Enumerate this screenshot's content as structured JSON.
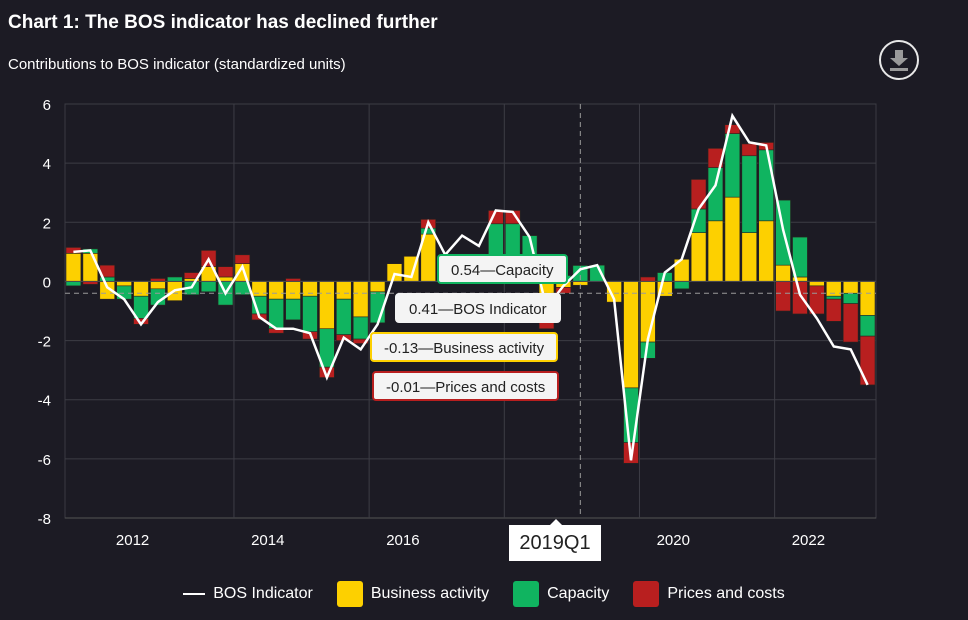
{
  "title": "Chart 1: The BOS indicator has declined further",
  "subtitle": "Contributions to BOS indicator (standardized units)",
  "download_icon": "download-icon",
  "tooltip": {
    "period": "2019Q1",
    "rows": [
      {
        "text": "0.54—Capacity",
        "color": "#10b460"
      },
      {
        "text": "0.41—BOS Indicator",
        "color": "#ffffff"
      },
      {
        "text": "-0.13—Business activity",
        "color": "#fdd000"
      },
      {
        "text": "-0.01—Prices and costs",
        "color": "#b81f1f"
      }
    ]
  },
  "legend": [
    {
      "label": "BOS Indicator",
      "kind": "line",
      "color": "#ffffff"
    },
    {
      "label": "Business activity",
      "kind": "swatch",
      "color": "#fdd000"
    },
    {
      "label": "Capacity",
      "kind": "swatch",
      "color": "#10b460"
    },
    {
      "label": "Prices and costs",
      "kind": "swatch",
      "color": "#b81f1f"
    }
  ],
  "chart_data": {
    "type": "bar",
    "stacked": true,
    "title": "Chart 1: The BOS indicator has declined further",
    "subtitle": "Contributions to BOS indicator (standardized units)",
    "xlabel": "",
    "ylabel": "",
    "ylim": [
      -8,
      6
    ],
    "yticks": [
      -8,
      -6,
      -4,
      -2,
      0,
      2,
      4,
      6
    ],
    "xticks": [
      "2012",
      "2014",
      "2016",
      "2018",
      "2020",
      "2022"
    ],
    "grid": true,
    "legend_position": "bottom",
    "reference_line": {
      "value": -0.4,
      "style": "dashed"
    },
    "highlight_category": "2019Q1",
    "categories": [
      "2011Q3",
      "2011Q4",
      "2012Q1",
      "2012Q2",
      "2012Q3",
      "2012Q4",
      "2013Q1",
      "2013Q2",
      "2013Q3",
      "2013Q4",
      "2014Q1",
      "2014Q2",
      "2014Q3",
      "2014Q4",
      "2015Q1",
      "2015Q2",
      "2015Q3",
      "2015Q4",
      "2016Q1",
      "2016Q2",
      "2016Q3",
      "2016Q4",
      "2017Q1",
      "2017Q2",
      "2017Q3",
      "2017Q4",
      "2018Q1",
      "2018Q2",
      "2018Q3",
      "2018Q4",
      "2019Q1",
      "2019Q2",
      "2019Q3",
      "2019Q4",
      "2020Q1",
      "2020Q2",
      "2020Q3",
      "2020Q4",
      "2021Q1",
      "2021Q2",
      "2021Q3",
      "2021Q4",
      "2022Q1",
      "2022Q2",
      "2022Q3",
      "2022Q4",
      "2023Q1",
      "2023Q2"
    ],
    "series": [
      {
        "name": "Business activity",
        "color": "#fdd000",
        "values": [
          0.95,
          0.95,
          -0.6,
          -0.15,
          -0.5,
          -0.25,
          -0.65,
          0.1,
          0.5,
          0.15,
          0.6,
          -0.5,
          -0.6,
          -0.6,
          -0.5,
          -1.6,
          -0.6,
          -1.2,
          -0.35,
          0.6,
          0.85,
          1.6,
          0.3,
          0.2,
          0.05,
          0.05,
          0.0,
          0.05,
          -0.5,
          -0.2,
          -0.13,
          0.0,
          -0.7,
          -3.6,
          -2.05,
          -0.5,
          0.75,
          1.65,
          2.05,
          2.85,
          1.65,
          2.05,
          0.55,
          0.15,
          -0.15,
          -0.5,
          -0.4,
          -1.15
        ]
      },
      {
        "name": "Capacity",
        "color": "#10b460",
        "values": [
          -0.15,
          0.15,
          0.15,
          -0.45,
          -0.75,
          -0.55,
          0.15,
          -0.45,
          -0.35,
          -0.8,
          -0.45,
          -0.6,
          -1.0,
          -0.7,
          -1.2,
          -1.3,
          -1.2,
          -0.75,
          -1.05,
          0.0,
          0.0,
          0.2,
          0.0,
          0.35,
          0.55,
          1.9,
          1.95,
          1.5,
          -0.8,
          0.2,
          0.54,
          0.55,
          0.0,
          -1.85,
          -0.55,
          0.3,
          -0.25,
          0.8,
          1.8,
          2.15,
          2.6,
          2.4,
          2.2,
          1.35,
          0.0,
          -0.1,
          -0.35,
          -0.7
        ]
      },
      {
        "name": "Prices and costs",
        "color": "#b81f1f",
        "values": [
          0.2,
          -0.1,
          0.4,
          0.0,
          -0.2,
          0.1,
          0.0,
          0.2,
          0.55,
          0.35,
          0.3,
          -0.2,
          -0.15,
          0.1,
          -0.25,
          -0.35,
          -0.2,
          -0.15,
          0.0,
          0.0,
          0.0,
          0.3,
          0.0,
          0.0,
          0.0,
          0.45,
          0.45,
          0.0,
          -0.3,
          -0.2,
          -0.01,
          0.0,
          0.0,
          -0.7,
          0.15,
          0.0,
          0.0,
          1.0,
          0.65,
          0.3,
          0.4,
          0.25,
          -1.0,
          -1.1,
          -0.95,
          -0.75,
          -1.3,
          -1.65
        ]
      }
    ],
    "line": {
      "name": "BOS Indicator",
      "color": "#ffffff",
      "values": [
        1.0,
        1.05,
        -0.2,
        -0.6,
        -1.45,
        -0.7,
        -0.3,
        -0.2,
        0.75,
        -0.4,
        0.5,
        -1.2,
        -1.6,
        -1.6,
        -1.75,
        -3.25,
        -1.9,
        -2.3,
        -1.45,
        0.25,
        0.15,
        2.0,
        0.9,
        1.55,
        1.2,
        2.4,
        2.35,
        1.5,
        -0.9,
        -0.15,
        0.41,
        0.55,
        -0.6,
        -6.05,
        -1.95,
        0.3,
        0.75,
        2.45,
        3.25,
        5.6,
        4.7,
        4.6,
        1.75,
        -0.45,
        -1.25,
        -2.2,
        -2.3,
        -3.5
      ]
    }
  }
}
